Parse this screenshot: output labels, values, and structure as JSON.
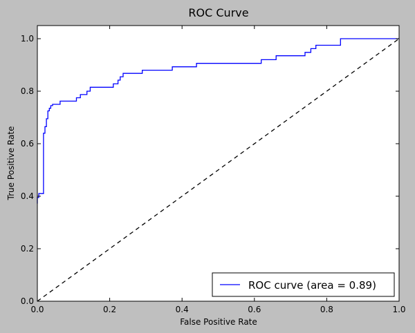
{
  "chart_data": {
    "type": "line",
    "title": "ROC Curve",
    "xlabel": "False Positive Rate",
    "ylabel": "True Positive Rate",
    "xlim": [
      0.0,
      1.0
    ],
    "ylim": [
      0.0,
      1.05
    ],
    "x_ticks": [
      {
        "value": 0.0,
        "label": "0.0"
      },
      {
        "value": 0.2,
        "label": "0.2"
      },
      {
        "value": 0.4,
        "label": "0.4"
      },
      {
        "value": 0.6,
        "label": "0.6"
      },
      {
        "value": 0.8,
        "label": "0.8"
      },
      {
        "value": 1.0,
        "label": "1.0"
      }
    ],
    "y_ticks": [
      {
        "value": 0.0,
        "label": "0.0"
      },
      {
        "value": 0.2,
        "label": "0.2"
      },
      {
        "value": 0.4,
        "label": "0.4"
      },
      {
        "value": 0.6,
        "label": "0.6"
      },
      {
        "value": 0.8,
        "label": "0.8"
      },
      {
        "value": 1.0,
        "label": "1.0"
      }
    ],
    "grid": false,
    "legend_position": "lower-right",
    "series": [
      {
        "name": "ROC curve (area = 0.89)",
        "color": "#0000ff",
        "style": "solid",
        "x": [
          0.0,
          0.0,
          0.004,
          0.004,
          0.017,
          0.017,
          0.021,
          0.021,
          0.025,
          0.025,
          0.029,
          0.029,
          0.033,
          0.033,
          0.037,
          0.037,
          0.042,
          0.042,
          0.063,
          0.063,
          0.108,
          0.108,
          0.119,
          0.119,
          0.137,
          0.137,
          0.146,
          0.146,
          0.21,
          0.21,
          0.223,
          0.223,
          0.229,
          0.229,
          0.237,
          0.237,
          0.29,
          0.29,
          0.373,
          0.373,
          0.44,
          0.44,
          0.619,
          0.619,
          0.66,
          0.66,
          0.74,
          0.74,
          0.756,
          0.756,
          0.77,
          0.77,
          0.838,
          0.838,
          1.0
        ],
        "y": [
          0.372,
          0.395,
          0.395,
          0.41,
          0.41,
          0.64,
          0.64,
          0.665,
          0.665,
          0.695,
          0.695,
          0.725,
          0.725,
          0.735,
          0.735,
          0.745,
          0.745,
          0.75,
          0.75,
          0.762,
          0.762,
          0.775,
          0.775,
          0.787,
          0.787,
          0.8,
          0.8,
          0.815,
          0.815,
          0.828,
          0.828,
          0.842,
          0.842,
          0.855,
          0.855,
          0.868,
          0.868,
          0.88,
          0.88,
          0.893,
          0.893,
          0.906,
          0.906,
          0.92,
          0.92,
          0.935,
          0.935,
          0.948,
          0.948,
          0.962,
          0.962,
          0.975,
          0.975,
          1.0,
          1.0
        ]
      },
      {
        "name": "",
        "color": "#000000",
        "style": "dashed",
        "x": [
          0.0,
          1.0
        ],
        "y": [
          0.0,
          1.0
        ]
      }
    ]
  }
}
